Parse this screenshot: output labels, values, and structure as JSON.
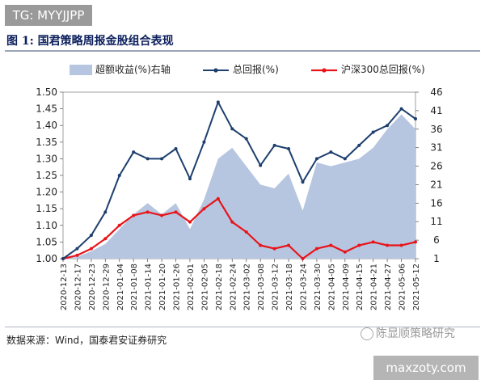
{
  "watermark_tag": "TG: MYYJJPP",
  "figure_title": "图 1:  国君策略周报金股组合表现",
  "source_note": "数据来源：Wind，国泰君安证券研究",
  "watermark_wechat": "陈显顺策略研究",
  "watermark_site": "maxzoty.com",
  "colors": {
    "excess_fill": "#b7c6e0",
    "total_line": "#1d3f6e",
    "csi300_line": "#e8141a",
    "axis_text": "#222222",
    "title": "#0b1f5c"
  },
  "chart_data": {
    "type": "line",
    "title": "",
    "xlabel": "",
    "ylabel": "",
    "x_ticks": [
      "2020-12-13",
      "2020-12-17",
      "2020-12-23",
      "2020-12-29",
      "2021-01-04",
      "2021-01-08",
      "2021-01-14",
      "2021-01-20",
      "2021-01-26",
      "2021-02-01",
      "2021-02-05",
      "2021-02-18",
      "2021-02-24",
      "2021-03-02",
      "2021-03-08",
      "2021-03-12",
      "2021-03-18",
      "2021-03-24",
      "2021-03-30",
      "2021-04-05",
      "2021-04-09",
      "2021-04-15",
      "2021-04-21",
      "2021-04-27",
      "2021-05-06",
      "2021-05-12"
    ],
    "y_left": {
      "ticks": [
        "1.00",
        "1.05",
        "1.10",
        "1.15",
        "1.20",
        "1.25",
        "1.30",
        "1.35",
        "1.40",
        "1.45",
        "1.50"
      ],
      "range": [
        1.0,
        1.5
      ]
    },
    "y_right": {
      "ticks": [
        "1",
        "6",
        "11",
        "16",
        "21",
        "26",
        "31",
        "36",
        "41",
        "46"
      ],
      "range": [
        1,
        46
      ]
    },
    "legend": {
      "placement": "top"
    },
    "series": [
      {
        "name": "超额收益(%)右轴",
        "kind": "area",
        "axis": "right",
        "x": [
          0,
          1,
          2,
          3,
          4,
          5,
          6,
          7,
          8,
          9,
          10,
          11,
          12,
          13,
          14,
          15,
          16,
          17,
          18,
          19,
          20,
          21,
          22,
          23,
          24,
          25
        ],
        "values": [
          1,
          1.5,
          3,
          5,
          9,
          13,
          16,
          13,
          16,
          9,
          17,
          28,
          31,
          26,
          21,
          20,
          24,
          14,
          27,
          26,
          27,
          28,
          31,
          36,
          40,
          36
        ]
      },
      {
        "name": "总回报(%)",
        "kind": "line",
        "axis": "left",
        "x": [
          0,
          1,
          2,
          3,
          4,
          5,
          6,
          7,
          8,
          9,
          10,
          11,
          12,
          13,
          14,
          15,
          16,
          17,
          18,
          19,
          20,
          21,
          22,
          23,
          24,
          25
        ],
        "values": [
          1.0,
          1.03,
          1.07,
          1.14,
          1.25,
          1.32,
          1.3,
          1.3,
          1.33,
          1.24,
          1.35,
          1.47,
          1.39,
          1.36,
          1.28,
          1.34,
          1.33,
          1.23,
          1.3,
          1.32,
          1.3,
          1.34,
          1.38,
          1.4,
          1.45,
          1.42
        ]
      },
      {
        "name": "沪深300总回报(%)",
        "kind": "line",
        "axis": "left",
        "x": [
          0,
          1,
          2,
          3,
          4,
          5,
          6,
          7,
          8,
          9,
          10,
          11,
          12,
          13,
          14,
          15,
          16,
          17,
          18,
          19,
          20,
          21,
          22,
          23,
          24,
          25
        ],
        "values": [
          1.0,
          1.01,
          1.03,
          1.06,
          1.1,
          1.13,
          1.14,
          1.13,
          1.14,
          1.11,
          1.15,
          1.18,
          1.11,
          1.08,
          1.04,
          1.03,
          1.04,
          1.0,
          1.03,
          1.04,
          1.02,
          1.04,
          1.05,
          1.04,
          1.04,
          1.05
        ]
      }
    ]
  }
}
